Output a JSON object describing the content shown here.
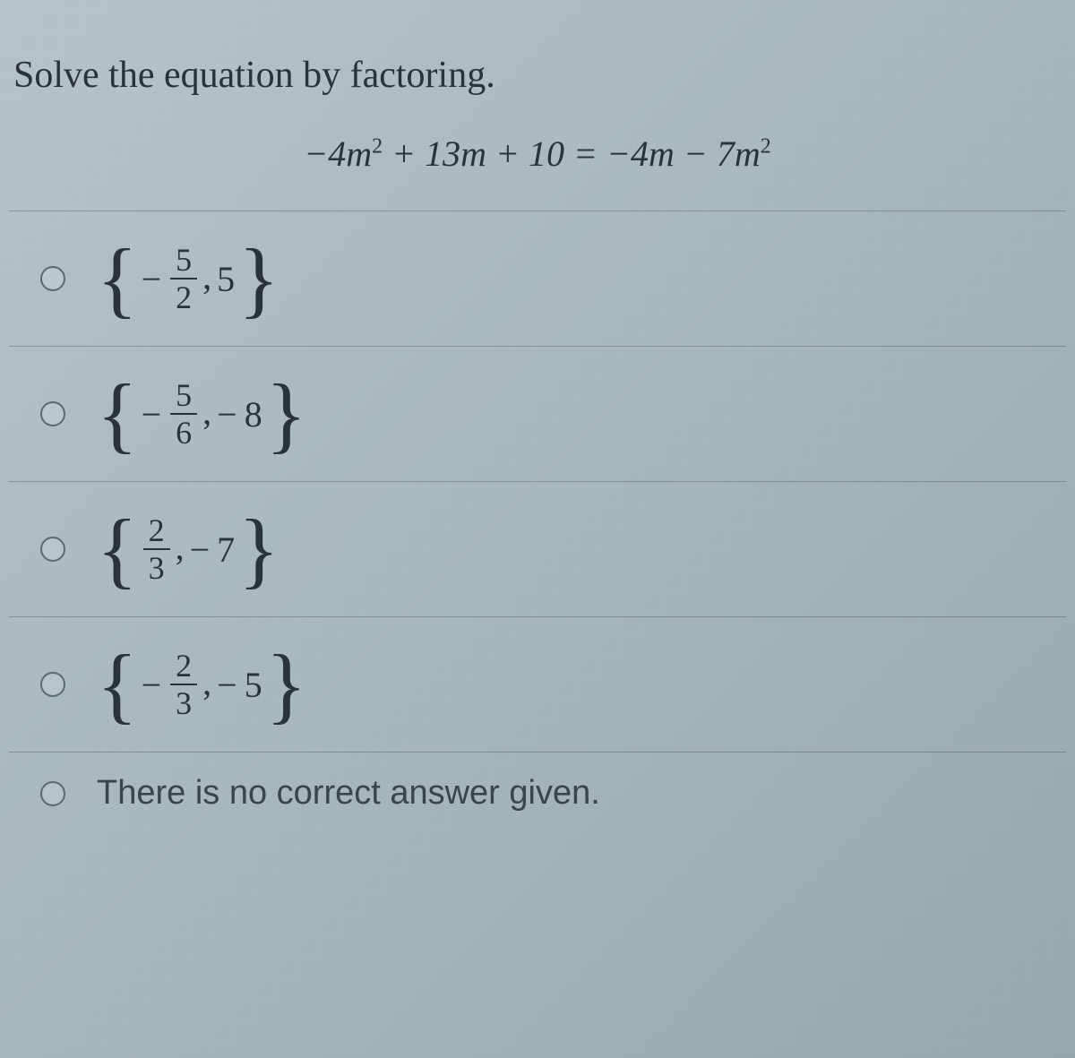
{
  "question": {
    "prompt": "Solve the equation by factoring.",
    "equation_html": "−4<i>m</i><sup>2</sup> + 13<i>m</i> + 10 = −4<i>m</i> − 7<i>m</i><sup>2</sup>"
  },
  "options": [
    {
      "id": "opt-a",
      "type": "set",
      "terms": [
        {
          "sign": "−",
          "frac_num": "5",
          "frac_den": "2"
        },
        {
          "sign": "",
          "value": "5"
        }
      ]
    },
    {
      "id": "opt-b",
      "type": "set",
      "terms": [
        {
          "sign": "−",
          "frac_num": "5",
          "frac_den": "6"
        },
        {
          "sign": "−",
          "value": "8"
        }
      ]
    },
    {
      "id": "opt-c",
      "type": "set",
      "terms": [
        {
          "sign": "",
          "frac_num": "2",
          "frac_den": "3"
        },
        {
          "sign": "−",
          "value": "7"
        }
      ]
    },
    {
      "id": "opt-d",
      "type": "set",
      "terms": [
        {
          "sign": "−",
          "frac_num": "2",
          "frac_den": "3"
        },
        {
          "sign": "−",
          "value": "5"
        }
      ]
    },
    {
      "id": "opt-e",
      "type": "text",
      "text": "There is no correct answer given."
    }
  ],
  "style": {
    "background_gradient": [
      "#b8c4c8",
      "#a8b8bc",
      "#98a8ac"
    ],
    "text_color": "#2a3338",
    "divider_color": "rgba(60,70,75,0.35)",
    "radio_border": "#5a6a70",
    "prompt_fontsize": 42,
    "equation_fontsize": 40,
    "option_fontsize": 40,
    "brace_fontsize": 95,
    "frac_fontsize": 36,
    "text_answer_fontsize": 38
  }
}
